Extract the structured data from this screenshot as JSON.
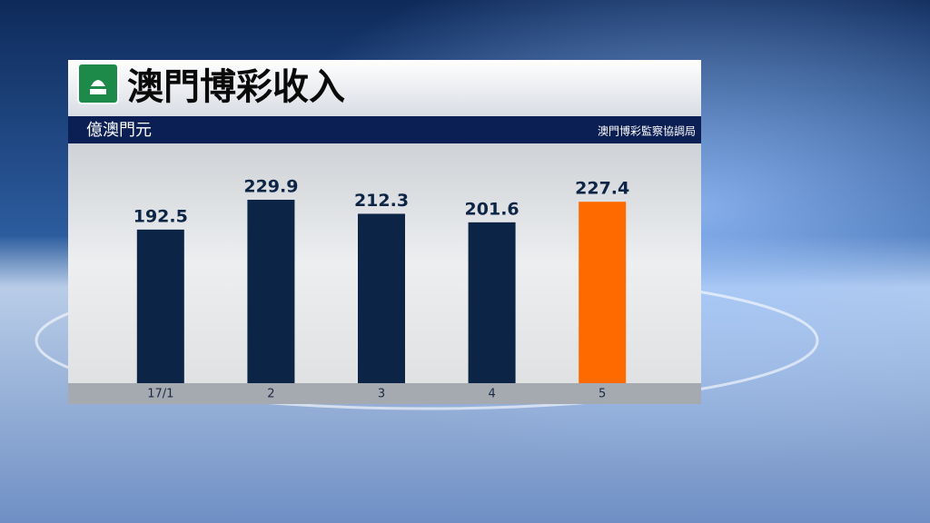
{
  "chart_data": {
    "type": "bar",
    "title": "澳門博彩收入",
    "subtitle": "億澳門元",
    "source": "澳門博彩監察協調局",
    "categories": [
      "17/1",
      "2",
      "3",
      "4",
      "5"
    ],
    "values": [
      192.5,
      229.9,
      212.3,
      201.6,
      227.4
    ],
    "colors": [
      "#0c2446",
      "#0c2446",
      "#0c2446",
      "#0c2446",
      "#ff6a00"
    ]
  }
}
